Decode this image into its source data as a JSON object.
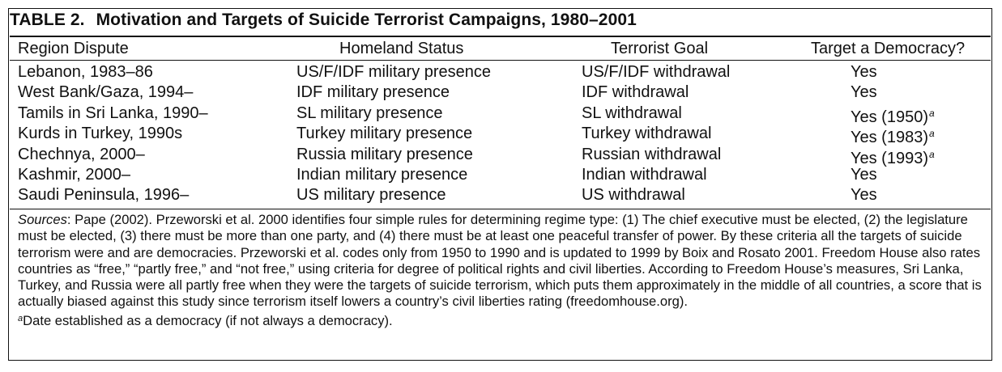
{
  "table": {
    "label": "TABLE 2.",
    "title": "Motivation and Targets of Suicide Terrorist Campaigns, 1980–2001",
    "columns": [
      "Region Dispute",
      "Homeland Status",
      "Terrorist Goal",
      "Target a Democracy?"
    ],
    "rows": [
      {
        "region": "Lebanon, 1983–86",
        "status": "US/F/IDF military presence",
        "goal": "US/F/IDF withdrawal",
        "democracy": "Yes",
        "mark": ""
      },
      {
        "region": "West Bank/Gaza, 1994–",
        "status": "IDF military presence",
        "goal": "IDF withdrawal",
        "democracy": "Yes",
        "mark": ""
      },
      {
        "region": "Tamils in Sri Lanka, 1990–",
        "status": "SL military presence",
        "goal": "SL withdrawal",
        "democracy": "Yes (1950)",
        "mark": "a"
      },
      {
        "region": "Kurds in Turkey, 1990s",
        "status": "Turkey military presence",
        "goal": "Turkey withdrawal",
        "democracy": "Yes (1983)",
        "mark": "a"
      },
      {
        "region": "Chechnya, 2000–",
        "status": "Russia military presence",
        "goal": "Russian withdrawal",
        "democracy": "Yes (1993)",
        "mark": "a"
      },
      {
        "region": "Kashmir, 2000–",
        "status": "Indian military presence",
        "goal": "Indian withdrawal",
        "democracy": "Yes",
        "mark": ""
      },
      {
        "region": "Saudi Peninsula, 1996–",
        "status": "US military presence",
        "goal": "US withdrawal",
        "democracy": "Yes",
        "mark": ""
      }
    ]
  },
  "notes": {
    "sources_label": "Sources",
    "sources_text": ": Pape (2002). Przeworski et al. 2000 identifies four simple rules for determining regime type: (1) The chief executive must be elected, (2) the legislature must be elected, (3) there must be more than one party, and (4) there must be at least one peaceful transfer of power. By these criteria all the targets of suicide terrorism were and are democracies. Przeworski et al. codes only from 1950 to 1990 and is updated to 1999 by Boix and Rosato 2001. Freedom House also rates countries as “free,” “partly free,” and “not free,” using criteria for degree of political rights and civil liberties. According to Freedom House’s measures, Sri Lanka, Turkey, and Russia were all partly free when they were the targets of suicide terrorism, which puts them approximately in the middle of all countries, a score that is actually biased against this study since terrorism itself lowers a country’s civil liberties rating (freedomhouse.org).",
    "footnote_mark": "a",
    "footnote_text": "Date established as a democracy (if not always a democracy)."
  }
}
